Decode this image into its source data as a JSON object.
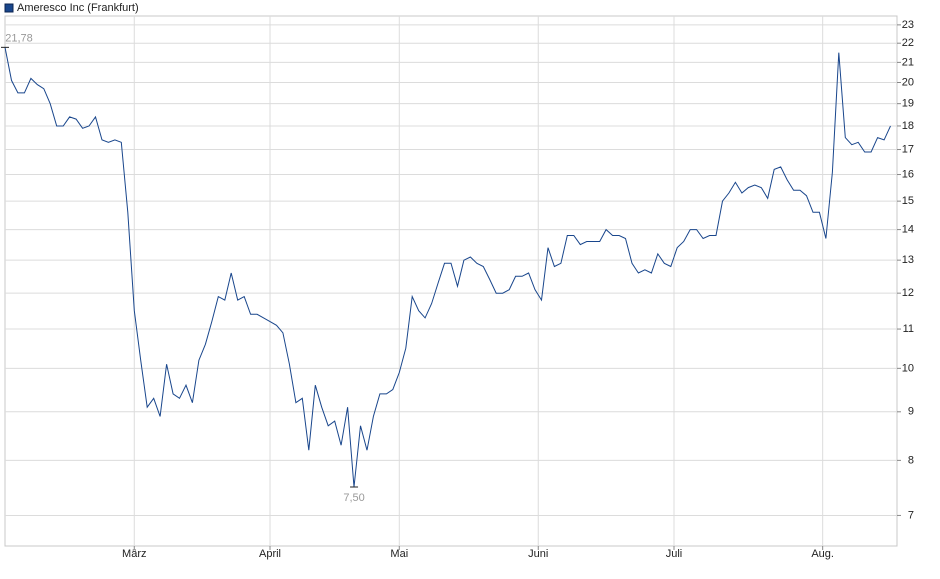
{
  "chart_data": {
    "type": "line",
    "legend": "Ameresco Inc (Frankfurt)",
    "color": "#19468c",
    "log_y": true,
    "grid": true,
    "ylim": [
      6.5,
      23.5
    ],
    "yticks": [
      7,
      8,
      9,
      10,
      11,
      12,
      13,
      14,
      15,
      16,
      17,
      18,
      19,
      20,
      21,
      22,
      23
    ],
    "xlim": [
      0,
      138
    ],
    "xticks": [
      {
        "value": 20,
        "label": "März"
      },
      {
        "value": 41,
        "label": "April"
      },
      {
        "value": 61,
        "label": "Mai"
      },
      {
        "value": 82.5,
        "label": "Juni"
      },
      {
        "value": 103.5,
        "label": "Juli"
      },
      {
        "value": 126.5,
        "label": "Aug."
      }
    ],
    "values": [
      21.78,
      20.1,
      19.5,
      19.5,
      20.2,
      19.9,
      19.7,
      19.0,
      18.0,
      18.0,
      18.4,
      18.3,
      17.9,
      18.0,
      18.4,
      17.4,
      17.3,
      17.4,
      17.3,
      14.6,
      11.5,
      10.2,
      9.1,
      9.3,
      8.9,
      10.1,
      9.4,
      9.3,
      9.6,
      9.2,
      10.2,
      10.6,
      11.2,
      11.9,
      11.8,
      12.6,
      11.8,
      11.9,
      11.4,
      11.4,
      11.3,
      11.2,
      11.1,
      10.9,
      10.1,
      9.2,
      9.3,
      8.2,
      9.6,
      9.1,
      8.7,
      8.8,
      8.3,
      9.1,
      7.5,
      8.7,
      8.2,
      8.9,
      9.4,
      9.4,
      9.5,
      9.9,
      10.5,
      11.9,
      11.5,
      11.3,
      11.7,
      12.3,
      12.9,
      12.9,
      12.2,
      13.0,
      13.1,
      12.9,
      12.8,
      12.4,
      12.0,
      12.0,
      12.1,
      12.5,
      12.5,
      12.6,
      12.1,
      11.8,
      13.4,
      12.8,
      12.9,
      13.8,
      13.8,
      13.5,
      13.6,
      13.6,
      13.6,
      14.0,
      13.8,
      13.8,
      13.7,
      12.9,
      12.6,
      12.7,
      12.6,
      13.2,
      12.9,
      12.8,
      13.4,
      13.6,
      14.0,
      14.0,
      13.7,
      13.8,
      13.8,
      15.0,
      15.3,
      15.7,
      15.3,
      15.5,
      15.6,
      15.5,
      15.1,
      16.2,
      16.3,
      15.8,
      15.4,
      15.4,
      15.2,
      14.6,
      14.6,
      13.7,
      16.1,
      21.5,
      17.5,
      17.2,
      17.3,
      16.9,
      16.9,
      17.5,
      17.4,
      18.0
    ],
    "annotations": [
      {
        "label": "21,78",
        "value": 21.78
      },
      {
        "label": "7,50",
        "value": 7.5
      }
    ]
  }
}
